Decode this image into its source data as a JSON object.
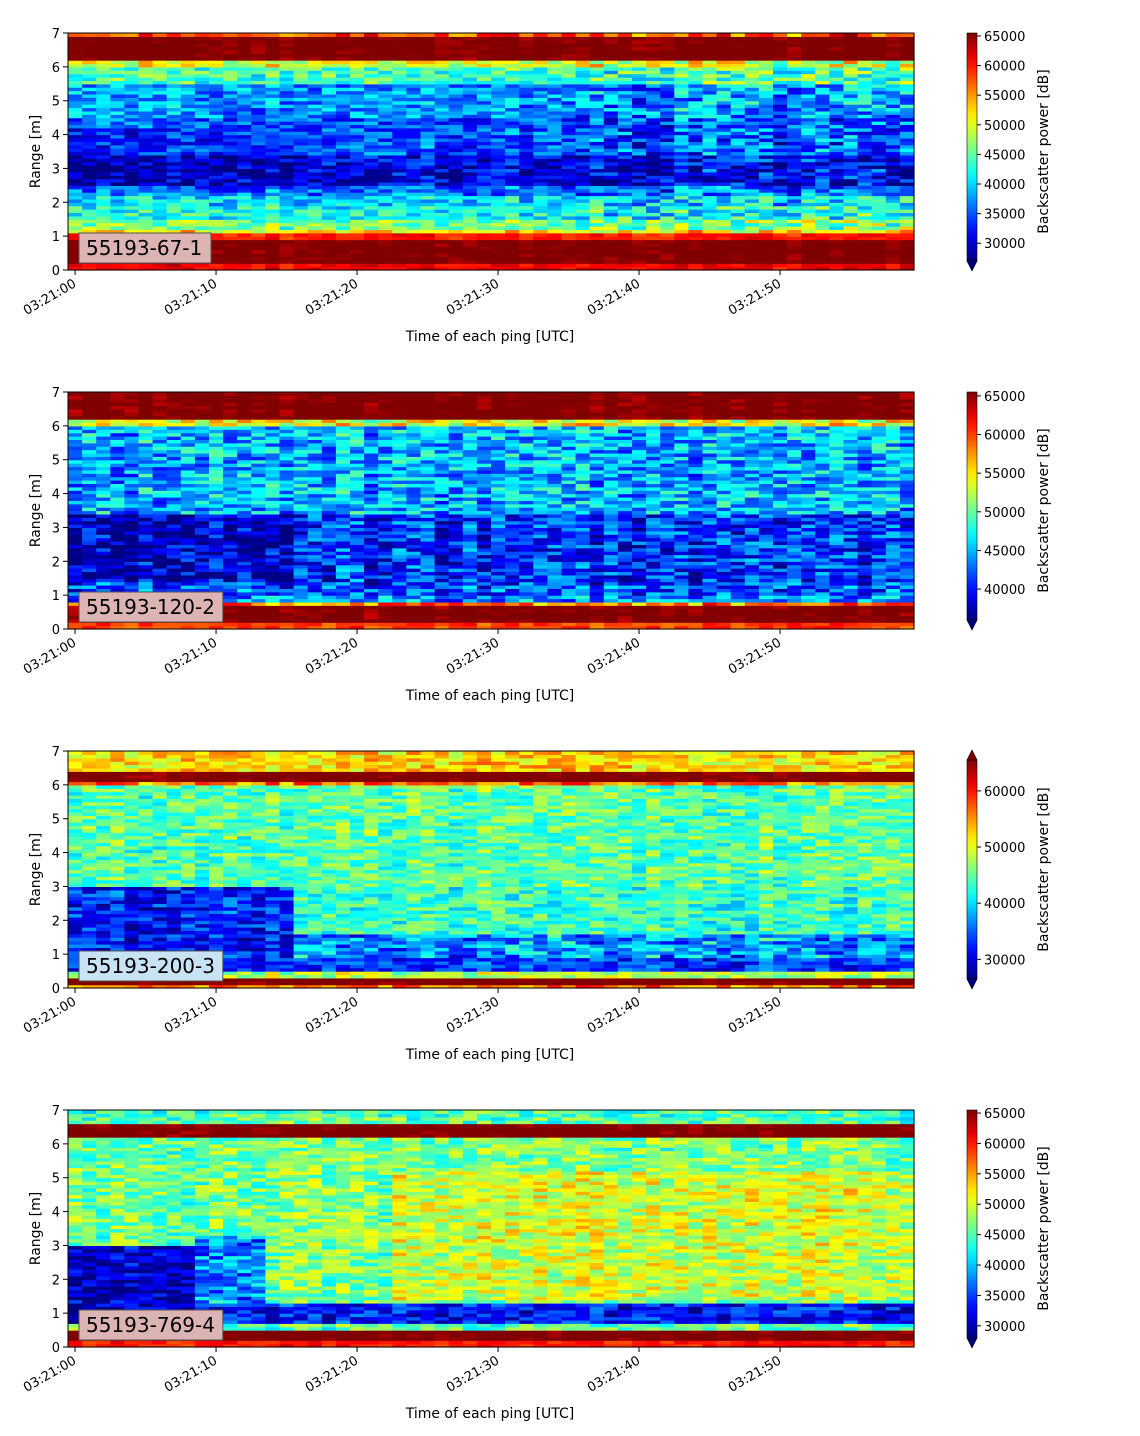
{
  "chart_data": [
    {
      "type": "heatmap",
      "label": "55193-67-1",
      "xlabel": "Time of each ping [UTC]",
      "ylabel": "Range [m]",
      "colorbar_label": "Backscatter power [dB]",
      "colormap": "jet",
      "x_ticks": [
        "03:21:00",
        "03:21:10",
        "03:21:20",
        "03:21:30",
        "03:21:40",
        "03:21:50"
      ],
      "x_range": [
        -0.5,
        59.5
      ],
      "y_ticks": [
        0,
        1,
        2,
        3,
        4,
        5,
        6,
        7
      ],
      "ylim": [
        0,
        7
      ],
      "color_ticks": [
        30000,
        35000,
        40000,
        45000,
        50000,
        55000,
        60000,
        65000
      ],
      "clim": [
        27000,
        65500
      ],
      "colorbar_extend": "min",
      "label_box_color": "#dcb4b4",
      "profile": [
        {
          "range": [
            0.0,
            0.2
          ],
          "value": 61000
        },
        {
          "range": [
            0.2,
            0.95
          ],
          "value": 66000
        },
        {
          "range": [
            0.95,
            1.1
          ],
          "value": 60000
        },
        {
          "range": [
            1.1,
            1.25
          ],
          "value": 52000
        },
        {
          "range": [
            1.25,
            1.55
          ],
          "value": 46000
        },
        {
          "range": [
            1.55,
            1.9
          ],
          "value": 42000
        },
        {
          "range": [
            1.9,
            2.2
          ],
          "value": 40000
        },
        {
          "range": [
            2.2,
            2.5
          ],
          "value": 36000
        },
        {
          "range": [
            2.5,
            3.4
          ],
          "value": 31000
        },
        {
          "range": [
            3.4,
            4.5
          ],
          "value": 35000
        },
        {
          "range": [
            4.5,
            5.5
          ],
          "value": 37500
        },
        {
          "range": [
            5.5,
            6.0
          ],
          "value": 44000
        },
        {
          "range": [
            6.0,
            6.2
          ],
          "value": 50000
        },
        {
          "range": [
            6.2,
            6.9
          ],
          "value": 66000
        },
        {
          "range": [
            6.9,
            7.0
          ],
          "value": 58000
        }
      ],
      "trend": "lower-left region (~2.5-3.5 m, 03:21:00-03:21:15) darkest; variability increases with time"
    },
    {
      "type": "heatmap",
      "label": "55193-120-2",
      "xlabel": "Time of each ping [UTC]",
      "ylabel": "Range [m]",
      "colorbar_label": "Backscatter power [dB]",
      "colormap": "jet",
      "x_ticks": [
        "03:21:00",
        "03:21:10",
        "03:21:20",
        "03:21:30",
        "03:21:40",
        "03:21:50"
      ],
      "x_range": [
        -0.5,
        59.5
      ],
      "y_ticks": [
        0,
        1,
        2,
        3,
        4,
        5,
        6,
        7
      ],
      "ylim": [
        0,
        7
      ],
      "color_ticks": [
        40000,
        45000,
        50000,
        55000,
        60000,
        65000
      ],
      "clim": [
        36000,
        65500
      ],
      "colorbar_extend": "min",
      "label_box_color": "#dcb4b4",
      "profile": [
        {
          "range": [
            0.0,
            0.2
          ],
          "value": 60000
        },
        {
          "range": [
            0.2,
            0.75
          ],
          "value": 66000
        },
        {
          "range": [
            0.75,
            0.85
          ],
          "value": 58000
        },
        {
          "range": [
            0.85,
            1.05
          ],
          "value": 44000
        },
        {
          "range": [
            1.05,
            1.3
          ],
          "value": 42000
        },
        {
          "range": [
            1.3,
            3.4
          ],
          "value": 41000
        },
        {
          "range": [
            3.4,
            6.0
          ],
          "value": 45000
        },
        {
          "range": [
            6.0,
            6.2
          ],
          "value": 54000
        },
        {
          "range": [
            6.2,
            7.0
          ],
          "value": 66000
        }
      ],
      "trend": "dark blue block at 1.5-3.3 m from 03:21:00 to ~03:21:15; patchy mid-level values afterwards"
    },
    {
      "type": "heatmap",
      "label": "55193-200-3",
      "xlabel": "Time of each ping [UTC]",
      "ylabel": "Range [m]",
      "colorbar_label": "Backscatter power [dB]",
      "colormap": "jet",
      "x_ticks": [
        "03:21:00",
        "03:21:10",
        "03:21:20",
        "03:21:30",
        "03:21:40",
        "03:21:50"
      ],
      "x_range": [
        -0.5,
        59.5
      ],
      "y_ticks": [
        0,
        1,
        2,
        3,
        4,
        5,
        6,
        7
      ],
      "ylim": [
        0,
        7
      ],
      "color_ticks": [
        30000,
        40000,
        50000,
        60000
      ],
      "clim": [
        26500,
        65500
      ],
      "colorbar_extend": "both",
      "label_box_color": "#c8e4f4",
      "profile": [
        {
          "range": [
            0.0,
            0.15
          ],
          "value": 56000
        },
        {
          "range": [
            0.15,
            0.3
          ],
          "value": 66000
        },
        {
          "range": [
            0.3,
            0.5
          ],
          "value": 48000
        },
        {
          "range": [
            0.5,
            1.0
          ],
          "value": 33000
        },
        {
          "range": [
            1.0,
            1.6
          ],
          "value": 38000
        },
        {
          "range": [
            1.6,
            3.0
          ],
          "value": 43000
        },
        {
          "range": [
            3.0,
            6.0
          ],
          "value": 44500
        },
        {
          "range": [
            6.0,
            6.15
          ],
          "value": 56000
        },
        {
          "range": [
            6.15,
            6.45
          ],
          "value": 66000
        },
        {
          "range": [
            6.45,
            7.0
          ],
          "value": 52000
        }
      ],
      "trend": "dark blue region at 1-3 m from 03:21:00 to ~03:21:15; fine-grained stripes across the whole range"
    },
    {
      "type": "heatmap",
      "label": "55193-769-4",
      "xlabel": "Time of each ping [UTC]",
      "ylabel": "Range [m]",
      "colorbar_label": "Backscatter power [dB]",
      "colormap": "jet",
      "x_ticks": [
        "03:21:00",
        "03:21:10",
        "03:21:20",
        "03:21:30",
        "03:21:40",
        "03:21:50"
      ],
      "x_range": [
        -0.5,
        59.5
      ],
      "y_ticks": [
        0,
        1,
        2,
        3,
        4,
        5,
        6,
        7
      ],
      "ylim": [
        0,
        7
      ],
      "color_ticks": [
        30000,
        35000,
        40000,
        45000,
        50000,
        55000,
        60000,
        65000
      ],
      "clim": [
        28000,
        65500
      ],
      "colorbar_extend": "min",
      "label_box_color": "#dcb4b4",
      "profile": [
        {
          "range": [
            0.0,
            0.2
          ],
          "value": 60000
        },
        {
          "range": [
            0.2,
            0.55
          ],
          "value": 66000
        },
        {
          "range": [
            0.55,
            0.7
          ],
          "value": 45000
        },
        {
          "range": [
            0.7,
            1.3
          ],
          "value": 33000
        },
        {
          "range": [
            1.3,
            3.0
          ],
          "value": 46000
        },
        {
          "range": [
            3.0,
            6.2
          ],
          "value": 46500
        },
        {
          "range": [
            6.2,
            6.6
          ],
          "value": 66000
        },
        {
          "range": [
            6.6,
            7.0
          ],
          "value": 45000
        }
      ],
      "trend": "dark blue block at 0.7-3 m from 03:21:00 to ~03:21:08; warmer yellow/orange patches later in the minute"
    }
  ]
}
